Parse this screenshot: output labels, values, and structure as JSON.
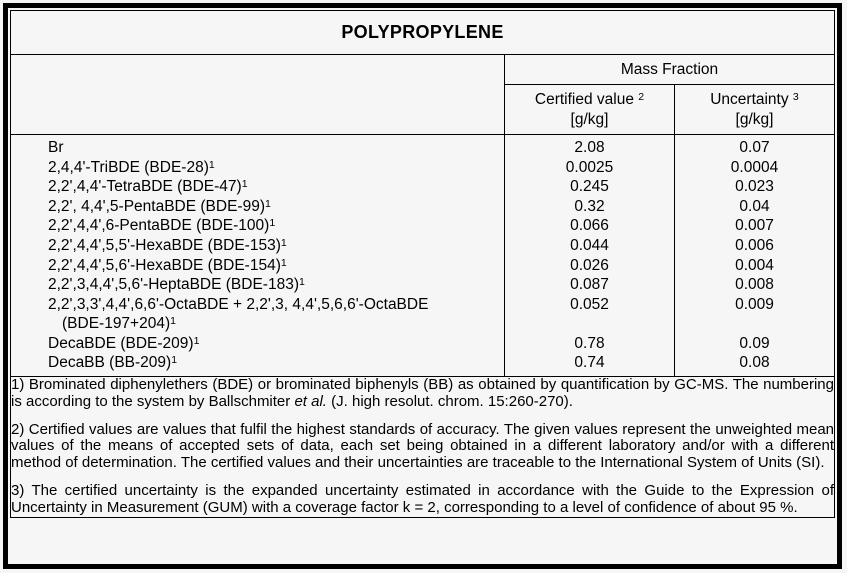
{
  "colors": {
    "background": "#f6f6f6",
    "border": "#000000",
    "text": "#000000"
  },
  "title": "POLYPROPYLENE",
  "table": {
    "group_header": "Mass Fraction",
    "columns": [
      {
        "label": "Certified value",
        "sup": "2",
        "unit": "[g/kg]"
      },
      {
        "label": "Uncertainty",
        "sup": "3",
        "unit": "[g/kg]"
      }
    ],
    "rows": [
      {
        "name": "Br",
        "sup": "",
        "indent": false,
        "certified": "2.08",
        "uncertainty": "0.07"
      },
      {
        "name": "2,4,4'-TriBDE (BDE-28)",
        "sup": "1",
        "indent": false,
        "certified": "0.0025",
        "uncertainty": "0.0004"
      },
      {
        "name": "2,2',4,4'-TetraBDE (BDE-47)",
        "sup": "1",
        "indent": false,
        "certified": "0.245",
        "uncertainty": "0.023"
      },
      {
        "name": "2,2', 4,4',5-PentaBDE (BDE-99)",
        "sup": "1",
        "indent": false,
        "certified": "0.32",
        "uncertainty": "0.04"
      },
      {
        "name": "2,2',4,4',6-PentaBDE (BDE-100)",
        "sup": "1",
        "indent": false,
        "certified": "0.066",
        "uncertainty": "0.007"
      },
      {
        "name": "2,2',4,4',5,5'-HexaBDE (BDE-153)",
        "sup": "1",
        "indent": false,
        "certified": "0.044",
        "uncertainty": "0.006"
      },
      {
        "name": "2,2',4,4',5,6'-HexaBDE (BDE-154)",
        "sup": "1",
        "indent": false,
        "certified": "0.026",
        "uncertainty": "0.004"
      },
      {
        "name": "2,2',3,4,4',5,6'-HeptaBDE (BDE-183)",
        "sup": "1",
        "indent": false,
        "certified": "0.087",
        "uncertainty": "0.008"
      },
      {
        "name": "2,2',3,3',4,4',6,6'-OctaBDE + 2,2',3, 4,4',5,6,6'-OctaBDE",
        "sup": "",
        "indent": false,
        "certified": "0.052",
        "uncertainty": "0.009"
      },
      {
        "name": "(BDE-197+204)",
        "sup": "1",
        "indent": true,
        "certified": "",
        "uncertainty": ""
      },
      {
        "name": "DecaBDE (BDE-209)",
        "sup": "1",
        "indent": false,
        "certified": "0.78",
        "uncertainty": "0.09"
      },
      {
        "name": "DecaBB (BB-209)",
        "sup": "1",
        "indent": false,
        "certified": "0.74",
        "uncertainty": "0.08"
      }
    ]
  },
  "footnotes": [
    {
      "parts": [
        {
          "text": "1) Brominated diphenylethers (BDE) or brominated biphenyls (BB) as obtained by quantification by GC-MS. The numbering is according to the system by Ballschmiter ",
          "italic": false
        },
        {
          "text": "et al.",
          "italic": true
        },
        {
          "text": " (J. high resolut. chrom. 15:260-270).",
          "italic": false
        }
      ]
    },
    {
      "parts": [
        {
          "text": "2) Certified values are values that fulfil the highest standards of accuracy. The given values represent the unweighted mean values of the means of accepted sets of data, each set being obtained in a different laboratory and/or with a different method of determination. The certified values and their uncertainties are traceable to the International System of Units (SI).",
          "italic": false
        }
      ]
    },
    {
      "parts": [
        {
          "text": "3) The certified uncertainty is the expanded uncertainty estimated in accordance with the Guide to the Expression of Uncertainty in Measurement (GUM) with a coverage factor k = 2, corresponding to a level of confidence of about 95 %.",
          "italic": false
        }
      ]
    }
  ]
}
